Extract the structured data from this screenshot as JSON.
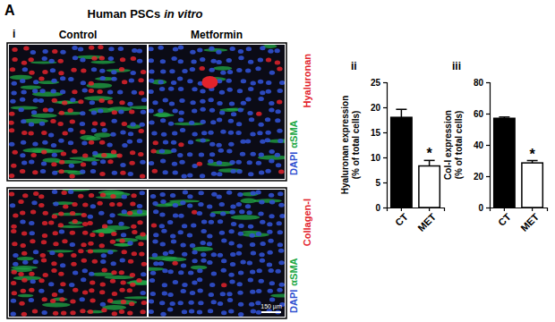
{
  "figure": {
    "panel": "A",
    "title": "Human PSCs",
    "title_italic": "in vitro",
    "subpanel": "i",
    "columns": [
      "Control",
      "Metformin"
    ],
    "rows": [
      {
        "stain": "Hyaluronan",
        "color": "#e3232b",
        "counterstains": [
          {
            "text": "DAPI",
            "color": "#3050d0"
          },
          {
            "text": "αSMA",
            "color": "#22a845"
          }
        ]
      },
      {
        "stain": "Collagen-I",
        "color": "#e3232b",
        "counterstains": [
          {
            "text": "DAPI",
            "color": "#3050d0"
          },
          {
            "text": "αSMA",
            "color": "#22a845"
          }
        ]
      }
    ],
    "scale_bar": "150 µm"
  },
  "chart_data": [
    {
      "type": "bar",
      "title": "ii",
      "y_label": [
        "Hyaluronan expression",
        "(% of total cells)"
      ],
      "categories": [
        "CT",
        "MET"
      ],
      "values": [
        18.0,
        8.3
      ],
      "errors": [
        1.6,
        1.1
      ],
      "colors": [
        "#000000",
        "#ffffff"
      ],
      "ylim": [
        0,
        25
      ],
      "yticks": [
        0,
        5,
        10,
        15,
        20,
        25
      ],
      "annotations": [
        {
          "category": "MET",
          "text": "*"
        }
      ]
    },
    {
      "type": "bar",
      "title": "iii",
      "y_label": [
        "Col-I expression",
        "(% of total cells)"
      ],
      "categories": [
        "CT",
        "MET"
      ],
      "values": [
        57,
        28.5
      ],
      "errors": [
        0.8,
        1.5
      ],
      "colors": [
        "#000000",
        "#ffffff"
      ],
      "ylim": [
        0,
        80
      ],
      "yticks": [
        0,
        20,
        40,
        60,
        80
      ],
      "annotations": [
        {
          "category": "MET",
          "text": "*"
        }
      ]
    }
  ]
}
